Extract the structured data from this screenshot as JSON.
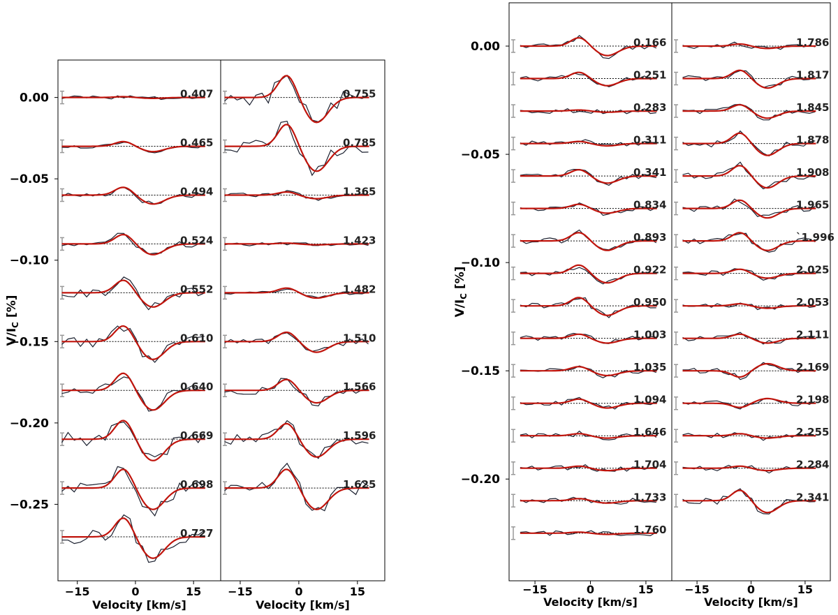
{
  "chart_data": [
    {
      "type": "line",
      "title": "",
      "ylabel": "V/I",
      "ylabel_sub": "C",
      "ylabel_unit": " [%]",
      "yticks": [
        "0.00",
        "−0.05",
        "−0.10",
        "−0.15",
        "−0.20",
        "−0.25"
      ],
      "ytick_values": [
        0.0,
        -0.05,
        -0.1,
        -0.15,
        -0.2,
        -0.25
      ],
      "ylim": [
        -0.297,
        0.023
      ],
      "offset_step": -0.03,
      "xlim": [
        -20,
        22
      ],
      "xticks": [
        "−15",
        "0",
        "15"
      ],
      "xtick_values": [
        -15,
        0,
        15
      ],
      "xlabel": "Velocity [km/s]",
      "series": [
        {
          "column": 0,
          "phases": [
            "0.407",
            "0.465",
            "0.494",
            "0.524",
            "0.552",
            "0.610",
            "0.640",
            "0.669",
            "0.698",
            "0.727"
          ],
          "amplitudes": [
            0.0005,
            0.003,
            0.005,
            0.006,
            0.008,
            0.01,
            0.011,
            0.012,
            0.012,
            0.012
          ],
          "model": "observed Stokes V profiles (black) with model fit (red)"
        },
        {
          "column": 1,
          "phases": [
            "0.755",
            "0.785",
            "1.365",
            "1.423",
            "1.482",
            "1.510",
            "1.566",
            "1.596",
            "1.625"
          ],
          "amplitudes": [
            0.014,
            0.014,
            0.002,
            0.0005,
            0.003,
            0.006,
            0.007,
            0.01,
            0.012
          ],
          "model": "observed Stokes V profiles (black) with model fit (red)"
        }
      ]
    },
    {
      "type": "line",
      "title": "",
      "ylabel": "V/I",
      "ylabel_sub": "C",
      "ylabel_unit": " [%]",
      "yticks": [
        "0.00",
        "−0.05",
        "−0.10",
        "−0.15",
        "−0.20"
      ],
      "ytick_values": [
        0.0,
        -0.05,
        -0.1,
        -0.15,
        -0.2
      ],
      "ylim": [
        -0.247,
        0.02
      ],
      "offset_step": -0.015,
      "xlim": [
        -22,
        22
      ],
      "xticks": [
        "−15",
        "0",
        "15"
      ],
      "xtick_values": [
        -15,
        0,
        15
      ],
      "xlabel": "Velocity [km/s]",
      "series": [
        {
          "column": 0,
          "phases": [
            "0.166",
            "0.251",
            "0.283",
            "0.311",
            "0.341",
            "0.834",
            "0.893",
            "0.922",
            "0.950",
            "1.003",
            "1.035",
            "1.094",
            "1.646",
            "1.704",
            "1.733",
            "1.760"
          ],
          "amplitudes": [
            0.004,
            0.003,
            0.0005,
            0.001,
            0.003,
            0.002,
            0.004,
            0.004,
            0.004,
            0.002,
            0.002,
            0.002,
            0.001,
            0.001,
            0.001,
            0.0005
          ],
          "model": "observed Stokes V profiles (black) with model fit (red)"
        },
        {
          "column": 1,
          "phases": [
            "1.786",
            "1.817",
            "1.845",
            "1.878",
            "1.908",
            "1.965",
            "ˋ1.996",
            "2.025",
            "2.053",
            "2.111",
            "2.169",
            "2.198",
            "2.255",
            "2.284",
            "2.341"
          ],
          "amplitudes": [
            0.001,
            0.004,
            0.003,
            0.005,
            0.005,
            0.004,
            0.004,
            0.002,
            0.001,
            0.002,
            -0.003,
            -0.002,
            0.001,
            0.001,
            0.005
          ],
          "model": "observed Stokes V profiles (black) with model fit (red)"
        }
      ]
    }
  ],
  "colors": {
    "observed": "#1a1f2e",
    "model": "#c0140c",
    "error_bar": "#999999",
    "baseline": "#000000",
    "frame": "#000000"
  }
}
